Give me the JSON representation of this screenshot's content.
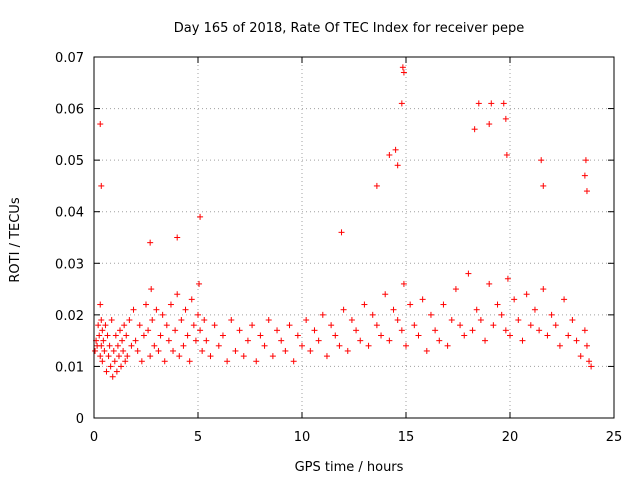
{
  "chart_data": {
    "type": "scatter",
    "title": "Day 165 of 2018, Rate Of TEC Index for receiver pepe",
    "xlabel": "GPS time / hours",
    "ylabel": "ROTI / TECUs",
    "xlim": [
      0,
      25
    ],
    "ylim": [
      0,
      0.07
    ],
    "grid": true,
    "marker": "+",
    "color": "#ff0000",
    "x_ticks": [
      0,
      5,
      10,
      15,
      20,
      25
    ],
    "x_tick_labels": [
      "0",
      "5",
      "10",
      "15",
      "20",
      "25"
    ],
    "y_ticks": [
      0,
      0.01,
      0.02,
      0.03,
      0.04,
      0.05,
      0.06,
      0.07
    ],
    "y_tick_labels": [
      "0",
      "0.01",
      "0.02",
      "0.03",
      "0.04",
      "0.05",
      "0.06",
      "0.07"
    ],
    "series": [
      {
        "name": "ROTI",
        "x": [
          0.05,
          0.1,
          0.15,
          0.2,
          0.25,
          0.3,
          0.3,
          0.35,
          0.35,
          0.4,
          0.4,
          0.45,
          0.5,
          0.55,
          0.6,
          0.65,
          0.7,
          0.75,
          0.8,
          0.85,
          0.9,
          0.95,
          1.0,
          1.05,
          1.1,
          1.15,
          1.2,
          1.25,
          1.3,
          1.35,
          1.4,
          1.45,
          1.5,
          1.55,
          1.6,
          1.7,
          1.8,
          1.9,
          2.0,
          2.1,
          2.2,
          2.3,
          2.4,
          2.5,
          2.6,
          2.7,
          2.75,
          2.8,
          2.9,
          3.0,
          3.1,
          3.2,
          3.3,
          3.4,
          3.5,
          3.6,
          3.7,
          3.8,
          3.9,
          4.0,
          4.1,
          4.2,
          4.3,
          4.4,
          4.5,
          4.6,
          4.7,
          4.8,
          4.9,
          5.0,
          5.05,
          5.1,
          5.2,
          5.3,
          5.4,
          5.6,
          5.8,
          6.0,
          6.2,
          6.4,
          6.6,
          6.8,
          7.0,
          7.2,
          7.4,
          7.6,
          7.8,
          8.0,
          8.2,
          8.4,
          8.6,
          8.8,
          9.0,
          9.2,
          9.4,
          9.6,
          9.8,
          10.0,
          10.2,
          10.4,
          10.6,
          10.8,
          11.0,
          11.2,
          11.4,
          11.6,
          11.8,
          12.0,
          12.2,
          12.4,
          12.6,
          12.8,
          13.0,
          13.2,
          13.4,
          13.6,
          13.8,
          14.0,
          14.2,
          14.4,
          14.6,
          14.8,
          14.9,
          15.0,
          15.2,
          15.4,
          15.6,
          15.8,
          16.0,
          16.2,
          16.4,
          16.6,
          16.8,
          17.0,
          17.2,
          17.4,
          17.6,
          17.8,
          18.0,
          18.2,
          18.4,
          18.6,
          18.8,
          19.0,
          19.2,
          19.4,
          19.6,
          19.8,
          19.9,
          20.0,
          20.2,
          20.4,
          20.6,
          20.8,
          21.0,
          21.2,
          21.4,
          21.6,
          21.8,
          22.0,
          22.2,
          22.4,
          22.6,
          22.8,
          23.0,
          23.2,
          23.4,
          23.6,
          23.7,
          23.8,
          23.9,
          0.3,
          0.35,
          2.7,
          4.0,
          5.1,
          11.9,
          13.6,
          14.2,
          14.5,
          14.6,
          14.8,
          14.85,
          14.9,
          18.3,
          18.5,
          19.0,
          19.1,
          19.7,
          19.8,
          19.85,
          21.5,
          21.6,
          23.6,
          23.65,
          23.7
        ],
        "y": [
          0.013,
          0.015,
          0.014,
          0.018,
          0.016,
          0.012,
          0.022,
          0.019,
          0.014,
          0.017,
          0.011,
          0.015,
          0.013,
          0.018,
          0.009,
          0.016,
          0.012,
          0.014,
          0.01,
          0.019,
          0.008,
          0.013,
          0.011,
          0.016,
          0.009,
          0.014,
          0.012,
          0.017,
          0.01,
          0.015,
          0.013,
          0.018,
          0.011,
          0.016,
          0.012,
          0.019,
          0.014,
          0.021,
          0.015,
          0.013,
          0.018,
          0.011,
          0.016,
          0.022,
          0.017,
          0.012,
          0.025,
          0.019,
          0.014,
          0.021,
          0.013,
          0.016,
          0.02,
          0.011,
          0.018,
          0.015,
          0.022,
          0.013,
          0.017,
          0.024,
          0.012,
          0.019,
          0.014,
          0.021,
          0.016,
          0.011,
          0.023,
          0.018,
          0.015,
          0.02,
          0.026,
          0.017,
          0.013,
          0.019,
          0.015,
          0.012,
          0.018,
          0.014,
          0.016,
          0.011,
          0.019,
          0.013,
          0.017,
          0.012,
          0.015,
          0.018,
          0.011,
          0.016,
          0.014,
          0.019,
          0.012,
          0.017,
          0.015,
          0.013,
          0.018,
          0.011,
          0.016,
          0.014,
          0.019,
          0.013,
          0.017,
          0.015,
          0.02,
          0.012,
          0.018,
          0.016,
          0.014,
          0.021,
          0.013,
          0.019,
          0.017,
          0.015,
          0.022,
          0.014,
          0.02,
          0.018,
          0.016,
          0.024,
          0.015,
          0.021,
          0.019,
          0.017,
          0.026,
          0.014,
          0.022,
          0.018,
          0.016,
          0.023,
          0.013,
          0.02,
          0.017,
          0.015,
          0.022,
          0.014,
          0.019,
          0.025,
          0.018,
          0.016,
          0.028,
          0.017,
          0.021,
          0.019,
          0.015,
          0.026,
          0.018,
          0.022,
          0.02,
          0.017,
          0.027,
          0.016,
          0.023,
          0.019,
          0.015,
          0.024,
          0.018,
          0.021,
          0.017,
          0.025,
          0.016,
          0.02,
          0.018,
          0.014,
          0.023,
          0.016,
          0.019,
          0.015,
          0.012,
          0.017,
          0.014,
          0.011,
          0.01,
          0.057,
          0.045,
          0.034,
          0.035,
          0.039,
          0.036,
          0.045,
          0.051,
          0.052,
          0.049,
          0.061,
          0.068,
          0.067,
          0.056,
          0.061,
          0.057,
          0.061,
          0.061,
          0.058,
          0.051,
          0.05,
          0.045,
          0.047,
          0.05,
          0.044
        ]
      }
    ]
  }
}
